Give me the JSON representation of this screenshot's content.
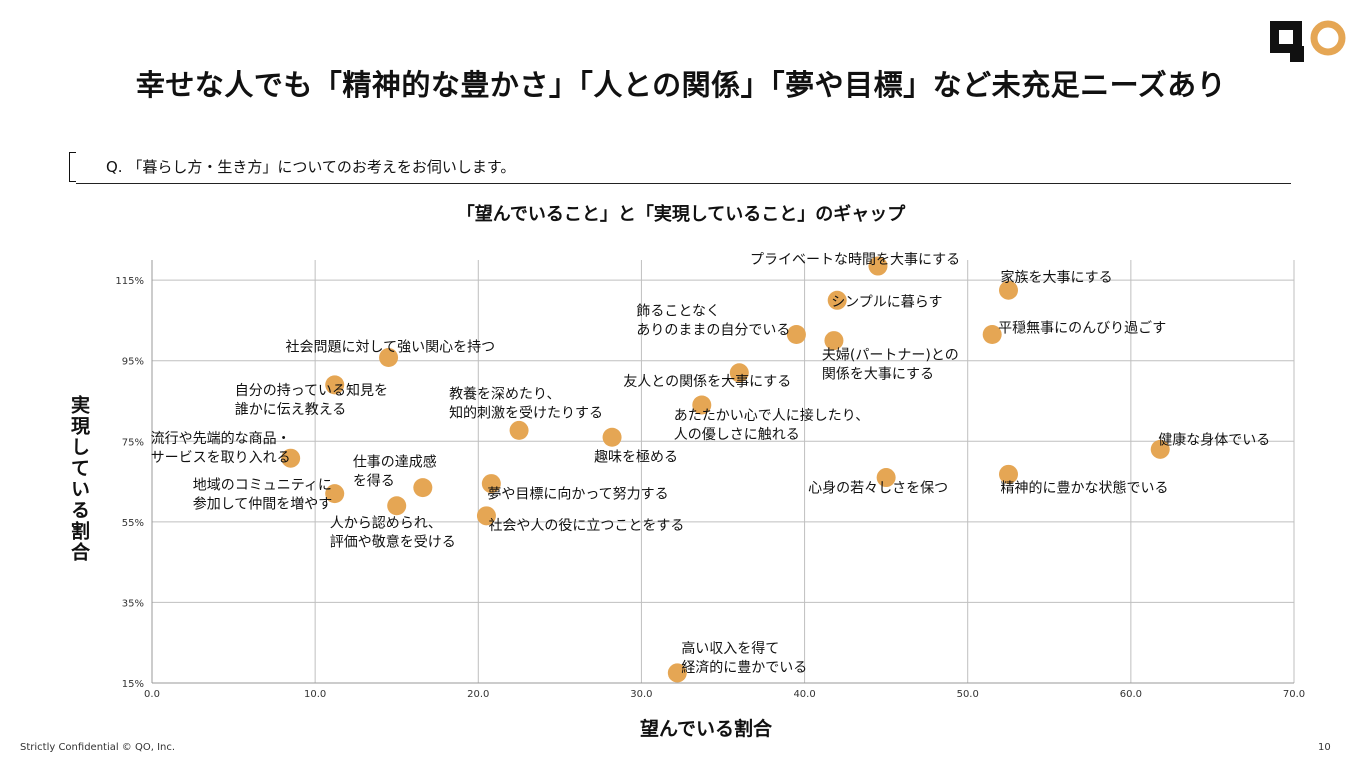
{
  "header": {
    "title": "幸せな人でも「精神的な豊かさ」「人との関係」「夢や目標」など未充足ニーズあり",
    "question": "Q. 「暮らし方・生き方」についてのお考えをお伺いします。",
    "logo_text": "QO"
  },
  "footer": {
    "confidential": "Strictly Confidential © QO, Inc.",
    "page_number": "10"
  },
  "colors": {
    "dot": "#E5A654",
    "grid": "#BFBFBF",
    "logo_ring": "#E5A654"
  },
  "chart_data": {
    "type": "scatter",
    "title": "「望んでいること」と「実現していること」のギャップ",
    "xlabel": "望んでいる割合",
    "ylabel": "実現している割合",
    "xlim": [
      0,
      70
    ],
    "ylim": [
      15,
      120
    ],
    "x_ticks": [
      0,
      10,
      20,
      30,
      40,
      50,
      60,
      70
    ],
    "x_tick_labels": [
      "0.0",
      "10.0",
      "20.0",
      "30.0",
      "40.0",
      "50.0",
      "60.0",
      "70.0"
    ],
    "y_ticks": [
      15,
      35,
      55,
      75,
      95,
      115
    ],
    "y_tick_labels": [
      "15%",
      "35%",
      "55%",
      "75%",
      "95%",
      "115%"
    ],
    "grid": true,
    "points": [
      {
        "label": [
          "プライベートな時間を大事にする"
        ],
        "x": 44.5,
        "y": 118.5
      },
      {
        "label": [
          "家族を大事にする"
        ],
        "x": 52.5,
        "y": 112.5
      },
      {
        "label": [
          "シンプルに暮らす"
        ],
        "x": 42.0,
        "y": 110.0
      },
      {
        "label": [
          "飾ることなく",
          "ありのままの自分でいる"
        ],
        "x": 39.5,
        "y": 101.5
      },
      {
        "label": [
          "平穏無事にのんびり過ごす"
        ],
        "x": 51.5,
        "y": 101.5
      },
      {
        "label": [
          "夫婦(パートナー)との",
          "関係を大事にする"
        ],
        "x": 41.8,
        "y": 100.0
      },
      {
        "label": [
          "社会問題に対して強い関心を持つ"
        ],
        "x": 14.5,
        "y": 95.8
      },
      {
        "label": [
          "友人との関係を大事にする"
        ],
        "x": 36.0,
        "y": 92.0
      },
      {
        "label": [
          "自分の持っている知見を",
          "誰かに伝え教える"
        ],
        "x": 11.2,
        "y": 89.0
      },
      {
        "label": [
          "あたたかい心で人に接したり、",
          "人の優しさに触れる"
        ],
        "x": 33.7,
        "y": 84.0
      },
      {
        "label": [
          "教養を深めたり、",
          "知的刺激を受けたりする"
        ],
        "x": 22.5,
        "y": 77.7
      },
      {
        "label": [
          "趣味を極める"
        ],
        "x": 28.2,
        "y": 76.0
      },
      {
        "label": [
          "健康な身体でいる"
        ],
        "x": 61.8,
        "y": 73.0
      },
      {
        "label": [
          "流行や先端的な商品・",
          "サービスを取り入れる"
        ],
        "x": 8.5,
        "y": 70.8
      },
      {
        "label": [
          "心身の若々しさを保つ"
        ],
        "x": 45.0,
        "y": 66.0
      },
      {
        "label": [
          "精神的に豊かな状態でいる"
        ],
        "x": 52.5,
        "y": 66.8
      },
      {
        "label": [
          "夢や目標に向かって努力する"
        ],
        "x": 20.8,
        "y": 64.5
      },
      {
        "label": [
          "仕事の達成感",
          "を得る"
        ],
        "x": 16.6,
        "y": 63.5
      },
      {
        "label": [
          "地域のコミュニティに",
          "参加して仲間を増やす"
        ],
        "x": 11.2,
        "y": 62.0
      },
      {
        "label": [
          "人から認められ、",
          "評価や敬意を受ける"
        ],
        "x": 15.0,
        "y": 59.0
      },
      {
        "label": [
          "社会や人の役に立つことをする"
        ],
        "x": 20.5,
        "y": 56.5
      },
      {
        "label": [
          "高い収入を得て",
          "経済的に豊かでいる"
        ],
        "x": 32.2,
        "y": 17.5
      }
    ]
  }
}
